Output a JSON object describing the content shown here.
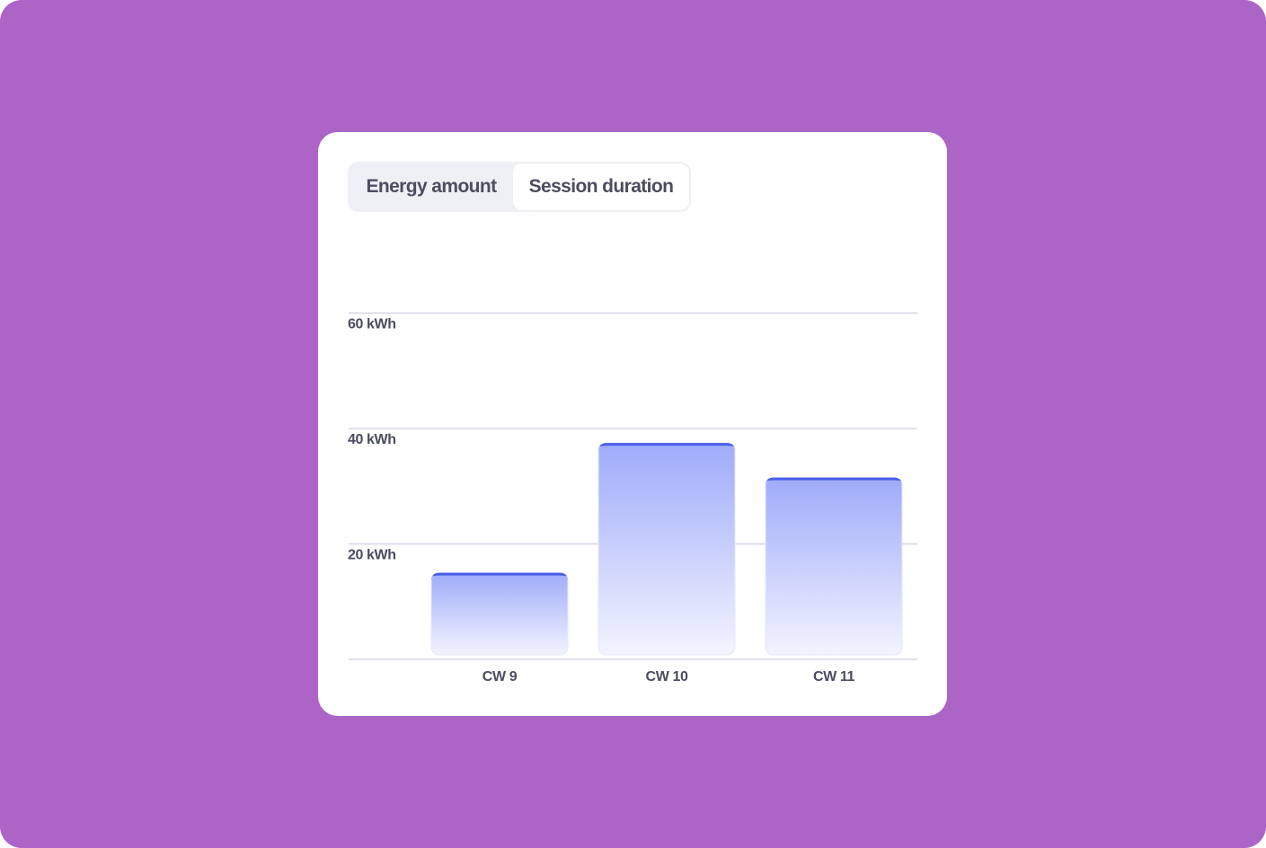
{
  "tabs": [
    {
      "label": "Energy amount",
      "active": false
    },
    {
      "label": "Session duration",
      "active": true
    }
  ],
  "chart_data": {
    "type": "bar",
    "categories": [
      "CW 9",
      "CW 10",
      "CW 11"
    ],
    "values": [
      15,
      37.5,
      31.5
    ],
    "ylim": [
      0,
      60
    ],
    "yticks": [
      {
        "value": 20,
        "label": "20 kWh"
      },
      {
        "value": 40,
        "label": "40 kWh"
      },
      {
        "value": 60,
        "label": "60 kWh"
      }
    ],
    "grid": true,
    "colors": {
      "bar_top": "#4a5fe8",
      "bar_fill_start": "#9eabfa",
      "bar_fill_end": "#f3f4fe",
      "grid": "#d4d6e6"
    }
  }
}
